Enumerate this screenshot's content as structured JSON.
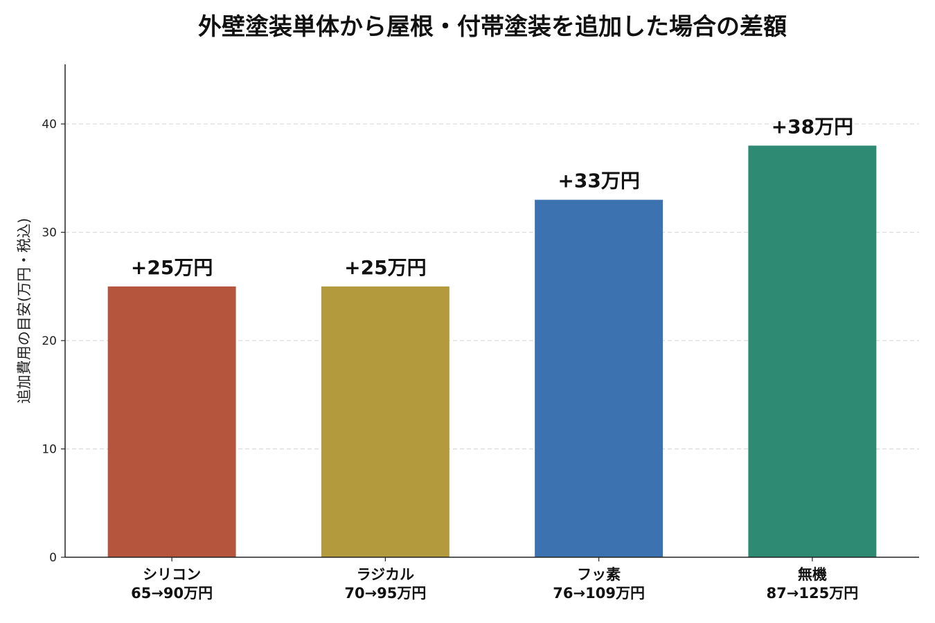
{
  "chart_data": {
    "type": "bar",
    "title": "外壁塗装単体から屋根・付帯塗装を追加した場合の差額",
    "xlabel": "",
    "ylabel": "追加費用の目安(万円・税込)",
    "ylim": [
      0,
      45.5
    ],
    "yticks": [
      0,
      10,
      20,
      30,
      40
    ],
    "grid": {
      "y": true,
      "style": "dashed"
    },
    "categories": [
      {
        "name": "シリコン",
        "detail": "65→90万円"
      },
      {
        "name": "ラジカル",
        "detail": "70→95万円"
      },
      {
        "name": "フッ素",
        "detail": "76→109万円"
      },
      {
        "name": "無機",
        "detail": "87→125万円"
      }
    ],
    "values": [
      25,
      25,
      33,
      38
    ],
    "data_labels": [
      "+25万円",
      "+25万円",
      "+33万円",
      "+38万円"
    ],
    "colors": [
      "#b5553d",
      "#b39a3c",
      "#3d72b0",
      "#2e8a72"
    ]
  }
}
